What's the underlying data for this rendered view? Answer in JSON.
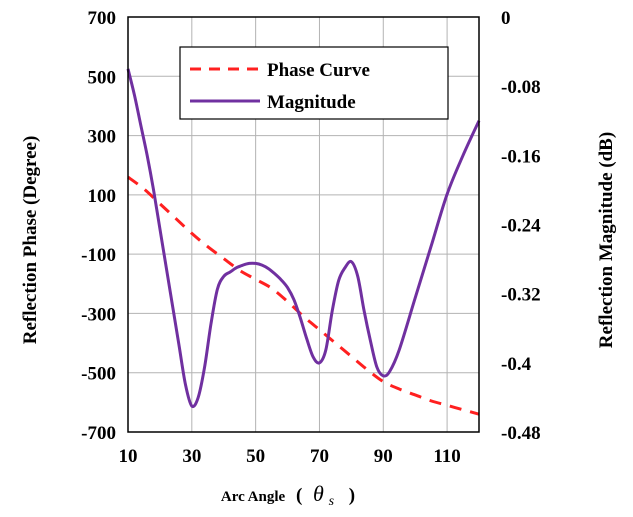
{
  "chart_data": {
    "type": "line",
    "xlabel": "Arc Angle ( θs )",
    "xlabel_parts": {
      "main": "Arc Angle",
      "open": "(",
      "symbol": "θ",
      "subscript": "s",
      "close": ")"
    },
    "ylabel_left": "Reflection Phase  (Degree)",
    "ylabel_right": "Reflection Magnitude (dB)",
    "xlim": [
      10,
      120
    ],
    "ylim_left": [
      -700,
      700
    ],
    "ylim_right": [
      -0.48,
      0
    ],
    "x_ticks": [
      10,
      30,
      50,
      70,
      90,
      110
    ],
    "y_left_ticks": [
      700,
      500,
      300,
      100,
      -100,
      -300,
      -500,
      -700
    ],
    "y_right_ticks": [
      "0",
      "-0.08",
      "-0.16",
      "-0.24",
      "-0.32",
      "-0.4",
      "-0.48"
    ],
    "y_right_tick_values": [
      0,
      -0.08,
      -0.16,
      -0.24,
      -0.32,
      -0.4,
      -0.48
    ],
    "grid": true,
    "legend_position": "top-center",
    "series": [
      {
        "name": "Phase Curve",
        "axis": "left",
        "style": "dashed",
        "color": "#ff2020",
        "x": [
          10,
          15,
          20,
          25,
          30,
          35,
          40,
          45,
          50,
          55,
          60,
          65,
          70,
          75,
          80,
          85,
          90,
          95,
          100,
          105,
          110,
          115,
          120
        ],
        "y": [
          160,
          120,
          70,
          20,
          -30,
          -75,
          -115,
          -155,
          -185,
          -215,
          -260,
          -310,
          -355,
          -400,
          -445,
          -490,
          -530,
          -555,
          -575,
          -595,
          -610,
          -625,
          -640
        ]
      },
      {
        "name": "Magnitude",
        "axis": "right",
        "style": "solid",
        "color": "#7030a0",
        "x": [
          10,
          12,
          14,
          16,
          18,
          20,
          22,
          24,
          26,
          28,
          30,
          32,
          34,
          36,
          38,
          40,
          42,
          44,
          46,
          48,
          50,
          52,
          54,
          56,
          58,
          60,
          62,
          64,
          66,
          68,
          70,
          72,
          74,
          76,
          78,
          80,
          82,
          84,
          86,
          88,
          90,
          92,
          95,
          100,
          105,
          110,
          115,
          120
        ],
        "y": [
          -0.06,
          -0.09,
          -0.125,
          -0.16,
          -0.2,
          -0.245,
          -0.29,
          -0.335,
          -0.38,
          -0.425,
          -0.45,
          -0.44,
          -0.405,
          -0.355,
          -0.315,
          -0.3,
          -0.295,
          -0.29,
          -0.287,
          -0.285,
          -0.285,
          -0.287,
          -0.291,
          -0.297,
          -0.304,
          -0.313,
          -0.327,
          -0.348,
          -0.372,
          -0.393,
          -0.4,
          -0.385,
          -0.34,
          -0.305,
          -0.29,
          -0.283,
          -0.3,
          -0.34,
          -0.375,
          -0.405,
          -0.415,
          -0.41,
          -0.385,
          -0.325,
          -0.265,
          -0.205,
          -0.16,
          -0.12
        ]
      }
    ]
  }
}
